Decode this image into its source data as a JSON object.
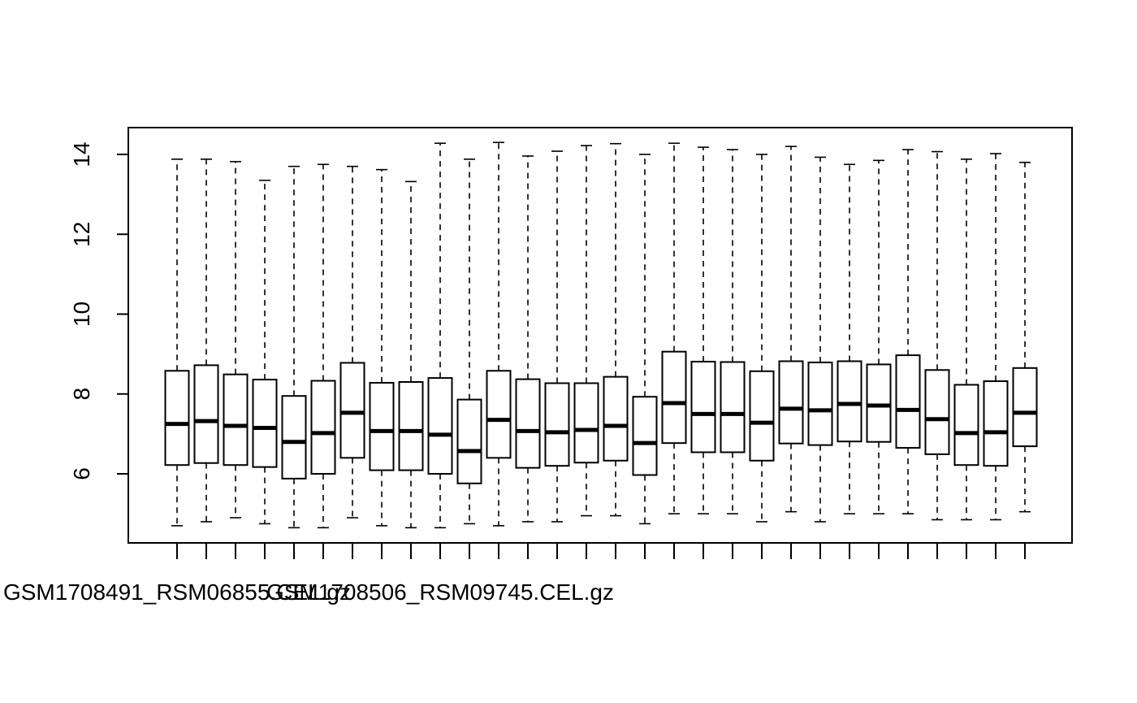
{
  "chart_data": {
    "type": "box",
    "title": "",
    "xlabel": "",
    "ylabel": "",
    "ylim": [
      4.2,
      14.7
    ],
    "y_ticks": [
      6,
      8,
      10,
      12,
      14
    ],
    "x_visible_tick_labels": [
      {
        "index": 1,
        "label": "GSM1708491_RSM06855.CEL.gz"
      },
      {
        "index": 10,
        "label": "GSM1708506_RSM09745.CEL.gz"
      }
    ],
    "boxes": [
      {
        "min": 4.7,
        "q1": 6.22,
        "median": 7.25,
        "q3": 8.58,
        "max": 13.88
      },
      {
        "min": 4.8,
        "q1": 6.27,
        "median": 7.32,
        "q3": 8.72,
        "max": 13.88
      },
      {
        "min": 4.9,
        "q1": 6.22,
        "median": 7.2,
        "q3": 8.49,
        "max": 13.82
      },
      {
        "min": 4.75,
        "q1": 6.17,
        "median": 7.15,
        "q3": 8.36,
        "max": 13.35
      },
      {
        "min": 4.65,
        "q1": 5.88,
        "median": 6.8,
        "q3": 7.95,
        "max": 13.7
      },
      {
        "min": 4.65,
        "q1": 6.0,
        "median": 7.02,
        "q3": 8.33,
        "max": 13.75
      },
      {
        "min": 4.9,
        "q1": 6.4,
        "median": 7.53,
        "q3": 8.78,
        "max": 13.7
      },
      {
        "min": 4.7,
        "q1": 6.09,
        "median": 7.07,
        "q3": 8.28,
        "max": 13.62
      },
      {
        "min": 4.65,
        "q1": 6.09,
        "median": 7.07,
        "q3": 8.3,
        "max": 13.32
      },
      {
        "min": 4.65,
        "q1": 6.0,
        "median": 6.98,
        "q3": 8.4,
        "max": 14.28
      },
      {
        "min": 4.75,
        "q1": 5.76,
        "median": 6.57,
        "q3": 7.86,
        "max": 13.88
      },
      {
        "min": 4.7,
        "q1": 6.4,
        "median": 7.35,
        "q3": 8.58,
        "max": 14.3
      },
      {
        "min": 4.8,
        "q1": 6.15,
        "median": 7.07,
        "q3": 8.37,
        "max": 13.96
      },
      {
        "min": 4.8,
        "q1": 6.2,
        "median": 7.04,
        "q3": 8.27,
        "max": 14.08
      },
      {
        "min": 4.95,
        "q1": 6.28,
        "median": 7.1,
        "q3": 8.27,
        "max": 14.22
      },
      {
        "min": 4.95,
        "q1": 6.33,
        "median": 7.2,
        "q3": 8.43,
        "max": 14.27
      },
      {
        "min": 4.75,
        "q1": 5.97,
        "median": 6.77,
        "q3": 7.93,
        "max": 14.0
      },
      {
        "min": 5.0,
        "q1": 6.77,
        "median": 7.77,
        "q3": 9.06,
        "max": 14.28
      },
      {
        "min": 5.0,
        "q1": 6.54,
        "median": 7.5,
        "q3": 8.81,
        "max": 14.18
      },
      {
        "min": 5.0,
        "q1": 6.54,
        "median": 7.5,
        "q3": 8.8,
        "max": 14.12
      },
      {
        "min": 4.8,
        "q1": 6.33,
        "median": 7.28,
        "q3": 8.57,
        "max": 14.0
      },
      {
        "min": 5.05,
        "q1": 6.76,
        "median": 7.63,
        "q3": 8.82,
        "max": 14.2
      },
      {
        "min": 4.8,
        "q1": 6.72,
        "median": 7.59,
        "q3": 8.79,
        "max": 13.93
      },
      {
        "min": 5.0,
        "q1": 6.81,
        "median": 7.75,
        "q3": 8.82,
        "max": 13.75
      },
      {
        "min": 5.0,
        "q1": 6.8,
        "median": 7.71,
        "q3": 8.74,
        "max": 13.85
      },
      {
        "min": 5.0,
        "q1": 6.65,
        "median": 7.6,
        "q3": 8.97,
        "max": 14.12
      },
      {
        "min": 4.85,
        "q1": 6.49,
        "median": 7.37,
        "q3": 8.6,
        "max": 14.07
      },
      {
        "min": 4.85,
        "q1": 6.22,
        "median": 7.02,
        "q3": 8.23,
        "max": 13.88
      },
      {
        "min": 4.85,
        "q1": 6.2,
        "median": 7.04,
        "q3": 8.32,
        "max": 14.02
      },
      {
        "min": 5.05,
        "q1": 6.69,
        "median": 7.53,
        "q3": 8.65,
        "max": 13.8
      }
    ]
  }
}
